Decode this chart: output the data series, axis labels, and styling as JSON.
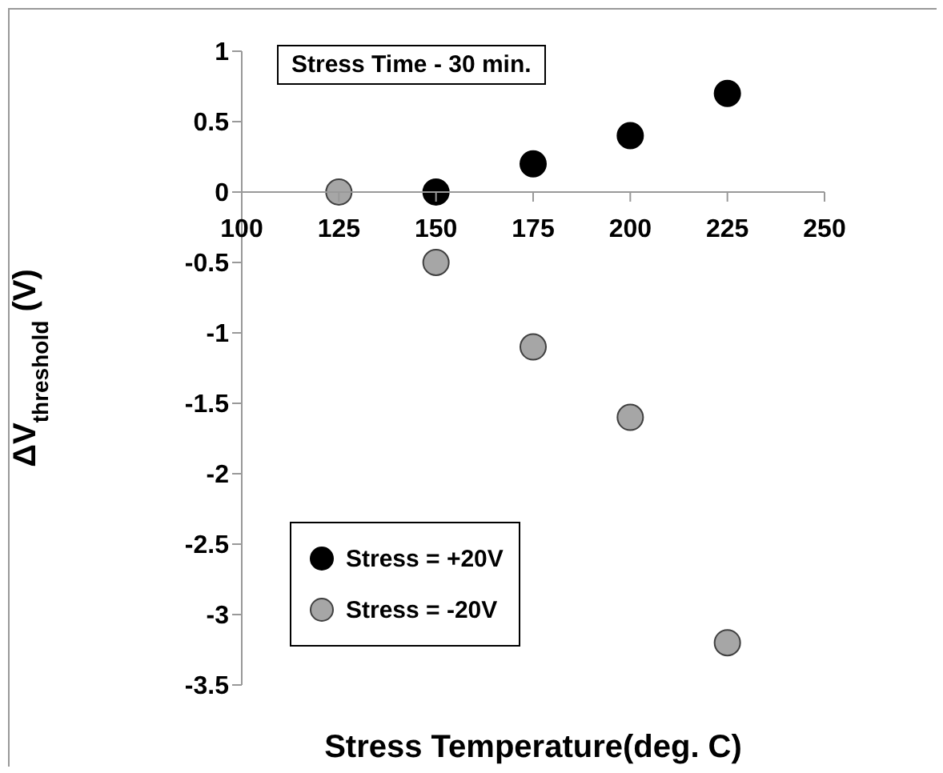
{
  "chart_data": {
    "type": "scatter",
    "title": "Stress Time - 30 min.",
    "xlabel": "Stress Temperature(deg. C)",
    "ylabel": "ΔV$_{threshold}$ (V)",
    "xlim": [
      100,
      250
    ],
    "xticks": [
      100,
      125,
      150,
      175,
      200,
      225,
      250
    ],
    "ylim": [
      -3.5,
      1
    ],
    "yticks": [
      -3.5,
      -3,
      -2.5,
      -2,
      -1.5,
      -1,
      -0.5,
      0,
      0.5,
      1
    ],
    "grid": false,
    "legend": "bottom left",
    "marker": "circle",
    "series": [
      {
        "name": "Stress = +20V",
        "color": "#000000",
        "x": [
          150,
          175,
          200,
          225
        ],
        "values": [
          0,
          0.2,
          0.4,
          0.7
        ]
      },
      {
        "name": "Stress = -20V",
        "color": "#a6a6a6",
        "x": [
          125,
          150,
          175,
          200,
          225
        ],
        "values": [
          0,
          -0.5,
          -1.1,
          -1.6,
          -3.2
        ]
      }
    ]
  }
}
